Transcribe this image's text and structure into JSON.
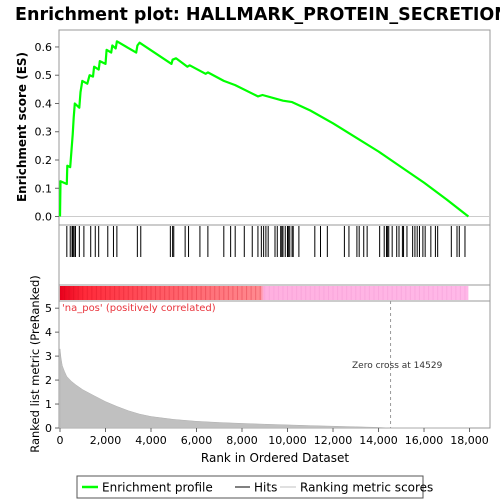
{
  "chart_data": {
    "type": "line",
    "title": "Enrichment plot: HALLMARK_PROTEIN_SECRETION",
    "panels": {
      "enrichment": {
        "ylabel": "Enrichment score (ES)",
        "ylim": [
          -0.03,
          0.66
        ],
        "yticks": [
          "0.0",
          "0.1",
          "0.2",
          "0.3",
          "0.4",
          "0.5",
          "0.6"
        ],
        "series": [
          {
            "name": "Enrichment profile",
            "color": "#00ff00",
            "points": [
              [
                0,
                0.0
              ],
              [
                20,
                0.125
              ],
              [
                300,
                0.115
              ],
              [
                320,
                0.18
              ],
              [
                450,
                0.175
              ],
              [
                500,
                0.23
              ],
              [
                560,
                0.29
              ],
              [
                600,
                0.35
              ],
              [
                650,
                0.4
              ],
              [
                850,
                0.385
              ],
              [
                900,
                0.44
              ],
              [
                980,
                0.48
              ],
              [
                1200,
                0.47
              ],
              [
                1300,
                0.5
              ],
              [
                1450,
                0.495
              ],
              [
                1500,
                0.53
              ],
              [
                1700,
                0.52
              ],
              [
                1750,
                0.55
              ],
              [
                2000,
                0.54
              ],
              [
                2050,
                0.59
              ],
              [
                2250,
                0.58
              ],
              [
                2300,
                0.605
              ],
              [
                2450,
                0.595
              ],
              [
                2500,
                0.62
              ],
              [
                3350,
                0.58
              ],
              [
                3400,
                0.605
              ],
              [
                3500,
                0.615
              ],
              [
                4900,
                0.54
              ],
              [
                4950,
                0.555
              ],
              [
                5100,
                0.56
              ],
              [
                5600,
                0.53
              ],
              [
                5700,
                0.535
              ],
              [
                6400,
                0.505
              ],
              [
                6500,
                0.51
              ],
              [
                7200,
                0.48
              ],
              [
                7700,
                0.465
              ],
              [
                8700,
                0.425
              ],
              [
                8900,
                0.43
              ],
              [
                9800,
                0.41
              ],
              [
                10200,
                0.405
              ],
              [
                11000,
                0.375
              ],
              [
                12000,
                0.33
              ],
              [
                13000,
                0.28
              ],
              [
                14000,
                0.23
              ],
              [
                15000,
                0.175
              ],
              [
                16000,
                0.12
              ],
              [
                17000,
                0.06
              ],
              [
                17950,
                0.0
              ]
            ]
          }
        ]
      },
      "hits": {
        "legend_name": "Hits",
        "positions": [
          300,
          450,
          530,
          570,
          620,
          680,
          850,
          1050,
          1350,
          1550,
          1700,
          2100,
          2350,
          2500,
          3400,
          3550,
          4850,
          4950,
          5000,
          5500,
          5650,
          6150,
          6500,
          7200,
          7500,
          7700,
          8100,
          8450,
          8700,
          8850,
          8950,
          9050,
          9150,
          9450,
          9550,
          9700,
          9750,
          9800,
          9900,
          10000,
          10050,
          10100,
          10200,
          10250,
          10500,
          11200,
          11450,
          11750,
          12500,
          12700,
          13050,
          13150,
          13350,
          13500,
          14050,
          14250,
          14350,
          14400,
          14450,
          14600,
          14800,
          14900,
          15050,
          15100,
          15250,
          15500,
          15600,
          15700,
          15800,
          15950,
          16050,
          16300,
          16500,
          16600,
          17200,
          17450,
          17550,
          17800
        ]
      },
      "ranking": {
        "ylabel": "Ranked list metric (PreRanked)",
        "ylim": [
          0,
          5.3
        ],
        "yticks": [
          "0",
          "1",
          "2",
          "3",
          "4",
          "5"
        ],
        "legend_name": "Ranking metric scores",
        "points": [
          [
            0,
            3.3
          ],
          [
            50,
            2.9
          ],
          [
            100,
            2.6
          ],
          [
            200,
            2.35
          ],
          [
            300,
            2.15
          ],
          [
            400,
            2.05
          ],
          [
            500,
            1.95
          ],
          [
            700,
            1.8
          ],
          [
            1000,
            1.6
          ],
          [
            1500,
            1.35
          ],
          [
            2000,
            1.1
          ],
          [
            2500,
            0.9
          ],
          [
            3000,
            0.72
          ],
          [
            3500,
            0.58
          ],
          [
            4000,
            0.48
          ],
          [
            5000,
            0.36
          ],
          [
            6000,
            0.28
          ],
          [
            7000,
            0.23
          ],
          [
            8000,
            0.19
          ],
          [
            9000,
            0.16
          ],
          [
            10000,
            0.13
          ],
          [
            11000,
            0.1
          ],
          [
            12000,
            0.075
          ],
          [
            13000,
            0.05
          ],
          [
            14000,
            0.025
          ],
          [
            14529,
            0.0
          ],
          [
            15000,
            0.0
          ],
          [
            18000,
            0.0
          ]
        ],
        "annotations": {
          "pos_label": "'na_pos' (positively correlated)",
          "zero_cross": "Zero cross at 14529"
        },
        "zero_cross_x": 14529
      }
    },
    "xlabel": "Rank in Ordered Dataset",
    "xlim": [
      0,
      18900
    ],
    "xticks": [
      "0",
      "2,000",
      "4,000",
      "6,000",
      "8,000",
      "10,000",
      "12,000",
      "14,000",
      "16,000",
      "18,000"
    ],
    "xtick_values": [
      0,
      2000,
      4000,
      6000,
      8000,
      10000,
      12000,
      14000,
      16000,
      18000
    ],
    "legend": [
      "Enrichment profile",
      "Hits",
      "Ranking metric scores"
    ]
  }
}
